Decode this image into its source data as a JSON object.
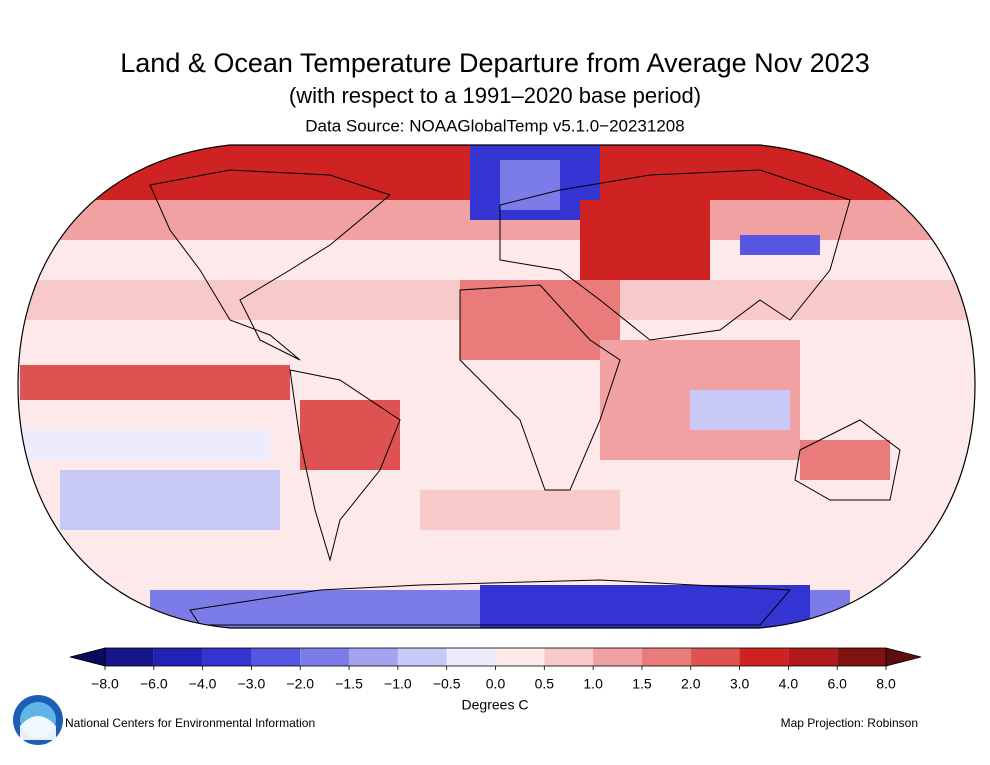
{
  "header": {
    "title": "Land & Ocean Temperature Departure from Average Nov 2023",
    "subtitle": "(with respect to a 1991–2020 base period)",
    "source": "Data Source: NOAAGlobalTemp v5.1.0−20231208"
  },
  "colorbar": {
    "label": "Degrees C",
    "ticks": [
      {
        "value": -8,
        "label": "−8.0"
      },
      {
        "value": -6,
        "label": "−6.0"
      },
      {
        "value": -4,
        "label": "−4.0"
      },
      {
        "value": -3,
        "label": "−3.0"
      },
      {
        "value": -2,
        "label": "−2.0"
      },
      {
        "value": -1.5,
        "label": "−1.5"
      },
      {
        "value": -1,
        "label": "−1.0"
      },
      {
        "value": -0.5,
        "label": "−0.5"
      },
      {
        "value": 0,
        "label": "0.0"
      },
      {
        "value": 0.5,
        "label": "0.5"
      },
      {
        "value": 1,
        "label": "1.0"
      },
      {
        "value": 1.5,
        "label": "1.5"
      },
      {
        "value": 2,
        "label": "2.0"
      },
      {
        "value": 3,
        "label": "3.0"
      },
      {
        "value": 4,
        "label": "4.0"
      },
      {
        "value": 6,
        "label": "6.0"
      },
      {
        "value": 8,
        "label": "8.0"
      }
    ],
    "colors": [
      "#16168a",
      "#2222b4",
      "#3434d2",
      "#5656e2",
      "#7c7ce9",
      "#a2a2f1",
      "#c9c9f8",
      "#ececfc",
      "#fde9e9",
      "#f8c9c9",
      "#f1a1a1",
      "#e97b7b",
      "#df5252",
      "#cf2323",
      "#b01a1a",
      "#801212"
    ],
    "under_color": "#0b0b5e",
    "over_color": "#5e0d0d"
  },
  "footer": {
    "left": "National Centers for Environmental Information",
    "right": "Map Projection: Robinson"
  }
}
